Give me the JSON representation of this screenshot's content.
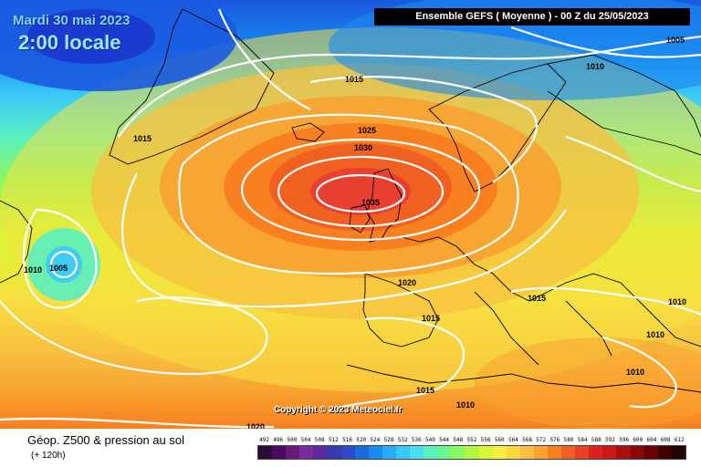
{
  "header": {
    "date": "Mardi 30 mai 2023",
    "time": "2:00 locale",
    "model": "Ensemble GEFS  ( Moyenne )  -  00 Z du 25/05/2023"
  },
  "copyright": "Copyright © 2023 Meteociel.fr",
  "footer": {
    "title": "Géop. Z500 & pression au sol",
    "subtitle": "(+ 120h)"
  },
  "isobars": {
    "i1005a": "1005",
    "i1010a": "1010",
    "i1015a": "1015",
    "i1015b": "1015",
    "i1025": "1025",
    "i1030": "1030",
    "i1035": "1035",
    "i1010b": "1010",
    "i1005b": "1005",
    "i1020a": "1020",
    "i1015c": "1015",
    "i1015d": "1015",
    "i1010c": "1010",
    "i1010d": "1010",
    "i1015e": "1015",
    "i1010e": "1010",
    "i1010f": "1010",
    "i1020b": "1020"
  },
  "legend": {
    "labels": [
      "492",
      "496",
      "500",
      "504",
      "508",
      "512",
      "516",
      "520",
      "524",
      "528",
      "532",
      "536",
      "540",
      "544",
      "548",
      "552",
      "556",
      "560",
      "564",
      "568",
      "572",
      "576",
      "580",
      "584",
      "588",
      "592",
      "596",
      "600",
      "604",
      "608",
      "612"
    ],
    "colors": [
      "#2a0a3a",
      "#4a0a5e",
      "#6a1a7a",
      "#7a2a9a",
      "#5a2aa0",
      "#3a3ab0",
      "#2a4ac8",
      "#1a6ae0",
      "#1a8af0",
      "#2aaaf8",
      "#3ac8f8",
      "#4ae0f0",
      "#5af0c0",
      "#6af890",
      "#8af860",
      "#b0f840",
      "#d8f830",
      "#f8f040",
      "#f8d840",
      "#f8c040",
      "#f8a030",
      "#f88020",
      "#f06020",
      "#e84020",
      "#e02020",
      "#c81818",
      "#a81010",
      "#880808",
      "#680404",
      "#400000",
      "#200000"
    ]
  }
}
